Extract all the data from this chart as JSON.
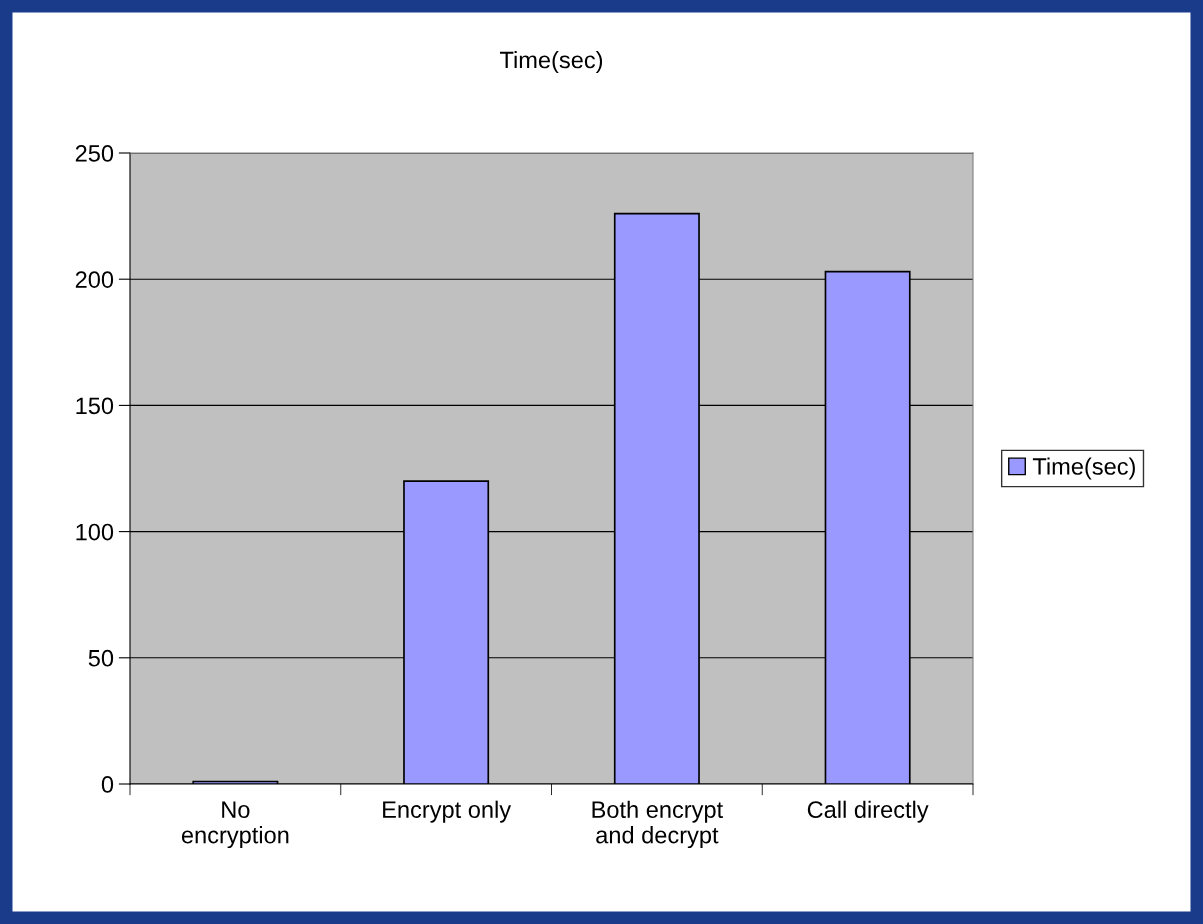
{
  "chart_data": {
    "type": "bar",
    "title": "Time(sec)",
    "categories": [
      "No\nencryption",
      "Encrypt only",
      "Both encrypt\nand decrypt",
      "Call directly"
    ],
    "series": [
      {
        "name": "Time(sec)",
        "color": "#9999ff",
        "values": [
          1,
          120,
          226,
          203
        ]
      }
    ],
    "ylim": [
      0,
      250
    ],
    "yticks": [
      0,
      50,
      100,
      150,
      200,
      250
    ],
    "grid": "y",
    "legend": "right"
  }
}
